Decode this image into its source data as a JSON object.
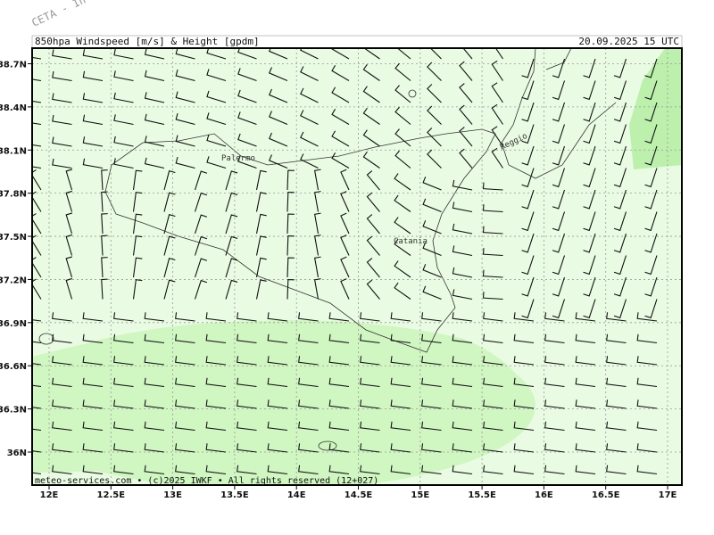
{
  "watermark": "CETA - In",
  "header": {
    "title": "850hpa Windspeed [m/s] & Height [gpdm]",
    "valid_time": "20.09.2025 15 UTC"
  },
  "axes": {
    "lat_ticks": [
      {
        "value": 38.7,
        "label": "38.7N"
      },
      {
        "value": 38.4,
        "label": "38.4N"
      },
      {
        "value": 38.1,
        "label": "38.1N"
      },
      {
        "value": 37.8,
        "label": "37.8N"
      },
      {
        "value": 37.5,
        "label": "37.5N"
      },
      {
        "value": 37.2,
        "label": "37.2N"
      },
      {
        "value": 36.9,
        "label": "36.9N"
      },
      {
        "value": 36.6,
        "label": "36.6N"
      },
      {
        "value": 36.3,
        "label": "36.3N"
      },
      {
        "value": 36,
        "label": "36N"
      }
    ],
    "lon_ticks": [
      {
        "value": 12,
        "label": "12E"
      },
      {
        "value": 12.5,
        "label": "12.5E"
      },
      {
        "value": 13,
        "label": "13E"
      },
      {
        "value": 13.5,
        "label": "13.5E"
      },
      {
        "value": 14,
        "label": "14E"
      },
      {
        "value": 14.5,
        "label": "14.5E"
      },
      {
        "value": 15,
        "label": "15E"
      },
      {
        "value": 15.5,
        "label": "15.5E"
      },
      {
        "value": 16,
        "label": "16E"
      },
      {
        "value": 16.5,
        "label": "16.5E"
      },
      {
        "value": 17,
        "label": "17E"
      }
    ]
  },
  "places": [
    {
      "label": "Palermo"
    },
    {
      "label": "Catania"
    },
    {
      "label": "Reggio"
    }
  ],
  "footer": "meteo-services.com • (c)2025 IWKF • All rights reserved (12+027)"
}
